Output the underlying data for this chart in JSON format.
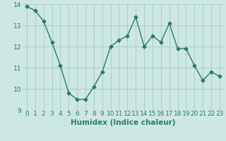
{
  "x": [
    0,
    1,
    2,
    3,
    4,
    5,
    6,
    7,
    8,
    9,
    10,
    11,
    12,
    13,
    14,
    15,
    16,
    17,
    18,
    19,
    20,
    21,
    22,
    23
  ],
  "y": [
    13.9,
    13.7,
    13.2,
    12.2,
    11.1,
    9.8,
    9.5,
    9.5,
    10.1,
    10.8,
    12.0,
    12.3,
    12.5,
    13.4,
    12.0,
    12.5,
    12.2,
    13.1,
    11.9,
    11.9,
    11.1,
    10.4,
    10.8,
    10.6
  ],
  "xlabel": "Humidex (Indice chaleur)",
  "ylim": [
    9,
    14
  ],
  "xlim": [
    -0.5,
    23.5
  ],
  "yticks": [
    9,
    10,
    11,
    12,
    13,
    14
  ],
  "xticks": [
    0,
    1,
    2,
    3,
    4,
    5,
    6,
    7,
    8,
    9,
    10,
    11,
    12,
    13,
    14,
    15,
    16,
    17,
    18,
    19,
    20,
    21,
    22,
    23
  ],
  "line_color": "#2a7a65",
  "bg_color": "#cde8e3",
  "grid_color": "#aacdc7",
  "marker": "D",
  "marker_size": 2.5,
  "line_width": 1.0,
  "xlabel_fontsize": 7.5,
  "tick_fontsize": 6.5
}
